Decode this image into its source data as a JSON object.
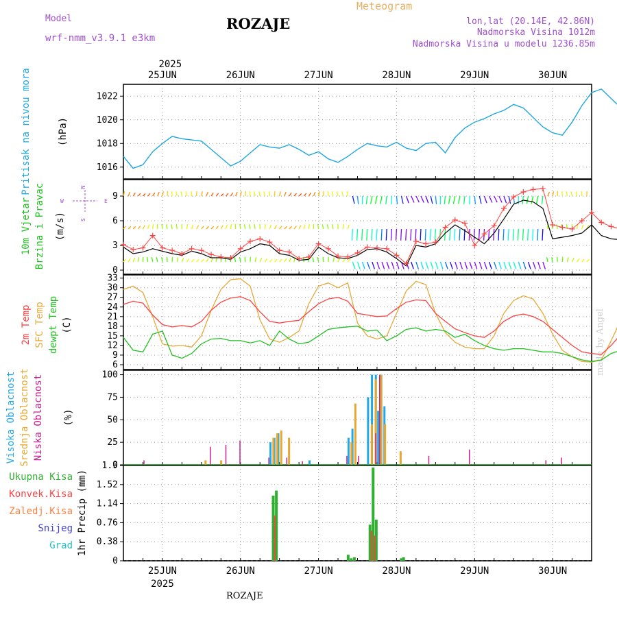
{
  "header": {
    "title": "ROZAJE",
    "model_label": "Model",
    "model_name": "wrf-nmm_v3.9.1 e3km",
    "meteogram": "Meteogram",
    "coords": "lon,lat (20.14E, 42.86N)",
    "elevation": "Nadmorska Visina 1012m",
    "elevation_model": "Nadmorska Visina u modelu 1236.85m"
  },
  "footer": {
    "location": "ROZAJE",
    "credit": "made by Angel"
  },
  "colors": {
    "pressure": "#1ea6e0",
    "temp2m": "#ff4040",
    "sfc": "#e8a838",
    "dew": "#20c020",
    "high": "#20a8e8",
    "mid": "#e8a830",
    "low": "#c81e8c",
    "total": "#30b030",
    "conv": "#ff4040",
    "frozen": "#ff8040",
    "snow": "#4040e0",
    "grad": "#20c0c0",
    "wind": "#000000",
    "gust": "#ff4040"
  },
  "chart_data": [
    {
      "type": "line",
      "panel": "pressure",
      "ylabel": [
        "Pritisak na nivou mora",
        "(hPa)"
      ],
      "yticks": [
        1016,
        1018,
        1020,
        1022
      ],
      "ylim": [
        1015,
        1023
      ],
      "x_start_day": 24.5,
      "step_hours": 3,
      "series": [
        {
          "name": "Pritisak",
          "values": [
            1016.9,
            1015.9,
            1016.2,
            1017.3,
            1018.0,
            1018.6,
            1018.4,
            1018.3,
            1018.2,
            1017.5,
            1016.8,
            1016.1,
            1016.5,
            1017.2,
            1017.9,
            1017.7,
            1017.6,
            1017.9,
            1017.5,
            1017.0,
            1017.3,
            1016.7,
            1016.4,
            1016.9,
            1017.5,
            1018.0,
            1017.8,
            1017.7,
            1018.1,
            1017.6,
            1017.4,
            1018.0,
            1018.1,
            1017.2,
            1018.5,
            1019.3,
            1019.8,
            1020.1,
            1020.5,
            1020.8,
            1021.3,
            1021.0,
            1020.2,
            1019.4,
            1018.9,
            1018.7,
            1019.8,
            1021.2,
            1022.3,
            1022.6,
            1021.8,
            1021.0,
            1020.8,
            1020.9,
            1020.1,
            1019.6,
            1019.3,
            1020.0,
            1021.2,
            1022.1,
            1021.8,
            1021.0,
            1020.6,
            1019.7,
            1018.5,
            1017.8
          ]
        }
      ]
    },
    {
      "type": "line",
      "panel": "wind",
      "ylabel": [
        "10m Vjetar",
        "Brzina i Pravac",
        "(m/s)"
      ],
      "compass": [
        "N",
        "W",
        "E",
        "S"
      ],
      "yticks": [
        0,
        3,
        6,
        9
      ],
      "ylim": [
        -0.5,
        11
      ],
      "x_start_day": 24.5,
      "step_hours": 3,
      "series": [
        {
          "name": "Brzina",
          "values": [
            2.8,
            2.0,
            2.2,
            2.6,
            2.3,
            2.0,
            1.8,
            2.3,
            2.0,
            1.5,
            1.5,
            1.3,
            2.2,
            2.6,
            3.2,
            3.0,
            2.0,
            1.8,
            1.2,
            1.3,
            2.8,
            2.0,
            1.5,
            1.4,
            1.8,
            2.5,
            2.6,
            2.2,
            1.4,
            0.5,
            3.0,
            2.8,
            3.2,
            4.5,
            5.5,
            4.8,
            4.0,
            3.2,
            4.5,
            6.2,
            8.0,
            8.5,
            8.3,
            7.5,
            3.8,
            4.0,
            4.2,
            4.5,
            5.5,
            4.2,
            3.8,
            3.7,
            4.0,
            4.2,
            6.8,
            7.5,
            7.8,
            7.7,
            6.8,
            4.5,
            3.0,
            2.5,
            3.0,
            3.5,
            5.5,
            5.5
          ]
        },
        {
          "name": "Udari",
          "values": [
            3.1,
            2.5,
            2.7,
            4.2,
            2.7,
            2.4,
            2.0,
            2.6,
            2.4,
            1.9,
            1.6,
            1.5,
            2.6,
            3.5,
            3.8,
            3.4,
            2.4,
            2.2,
            1.4,
            1.6,
            3.2,
            2.6,
            1.7,
            1.6,
            2.1,
            2.8,
            2.7,
            2.6,
            1.8,
            0.8,
            3.5,
            3.2,
            3.4,
            5.2,
            6.1,
            5.7,
            3.0,
            4.4,
            5.4,
            7.5,
            8.9,
            9.5,
            9.8,
            9.9,
            5.5,
            5.2,
            5.0,
            6.0,
            7.0,
            5.8,
            5.3,
            5.0,
            5.5,
            5.6,
            8.2,
            9.6,
            10.0,
            9.5,
            8.8,
            6.2,
            4.6,
            3.8,
            4.0,
            4.3,
            6.5,
            5.2
          ]
        }
      ],
      "arrow_rows": [
        9,
        5,
        1
      ]
    },
    {
      "type": "line",
      "panel": "temperature",
      "ylabel": [
        "2m Temp",
        "SFC Temp",
        "dewpt Temp",
        "(C)"
      ],
      "yticks": [
        6,
        9,
        12,
        15,
        18,
        21,
        24,
        27,
        30,
        33
      ],
      "ylim": [
        4.5,
        34
      ],
      "x_start_day": 24.5,
      "step_hours": 3,
      "series": [
        {
          "name": "2m Temp",
          "values": [
            24.8,
            25.8,
            25.2,
            21.5,
            18.5,
            17.8,
            18.2,
            17.8,
            19.5,
            23.0,
            25.5,
            26.8,
            27.2,
            26.0,
            22.5,
            19.5,
            19.0,
            19.5,
            19.8,
            22.5,
            25.0,
            26.5,
            27.0,
            25.8,
            22.0,
            21.5,
            21.0,
            21.2,
            23.5,
            25.5,
            26.2,
            26.0,
            22.0,
            19.5,
            17.2,
            16.0,
            15.0,
            14.5,
            16.5,
            19.5,
            21.2,
            21.8,
            21.0,
            19.5,
            17.0,
            14.5,
            12.0,
            10.0,
            9.5,
            9.2,
            12.0,
            15.5,
            18.5,
            20.3,
            20.0,
            18.5,
            15.0,
            12.5,
            12.0,
            11.8,
            12.5,
            15.0,
            18.5,
            20.8,
            21.8,
            22.5
          ]
        },
        {
          "name": "SFC Temp",
          "values": [
            29.5,
            30.5,
            28.5,
            21.0,
            12.5,
            11.8,
            12.0,
            11.5,
            15.0,
            23.0,
            29.5,
            32.5,
            32.8,
            30.5,
            20.0,
            14.0,
            13.0,
            14.5,
            16.5,
            25.0,
            30.5,
            31.5,
            30.0,
            31.5,
            19.0,
            15.0,
            14.0,
            15.0,
            22.0,
            29.0,
            32.0,
            31.0,
            22.0,
            16.0,
            13.0,
            11.5,
            11.0,
            11.0,
            15.0,
            22.0,
            26.0,
            27.5,
            26.5,
            22.0,
            15.5,
            10.5,
            8.5,
            7.0,
            6.8,
            7.5,
            13.5,
            20.0,
            25.0,
            27.0,
            26.0,
            22.0,
            14.0,
            9.0,
            8.0,
            7.5,
            8.5,
            17.0,
            24.0,
            27.5,
            29.0,
            29.0
          ]
        },
        {
          "name": "dewpt Temp",
          "values": [
            14.5,
            10.5,
            10.0,
            15.5,
            16.5,
            9.0,
            8.0,
            9.5,
            12.5,
            14.0,
            14.2,
            13.5,
            13.5,
            12.8,
            13.5,
            12.0,
            16.5,
            14.0,
            12.5,
            13.0,
            15.0,
            17.0,
            17.5,
            17.8,
            18.0,
            16.5,
            16.8,
            13.5,
            15.0,
            17.0,
            17.5,
            16.5,
            17.0,
            16.5,
            14.5,
            15.5,
            13.5,
            12.0,
            11.0,
            10.5,
            11.0,
            11.0,
            10.5,
            10.0,
            10.0,
            9.5,
            8.5,
            7.5,
            7.0,
            7.5,
            9.5,
            10.5,
            10.5,
            11.0,
            10.8,
            11.0,
            11.5,
            11.0,
            11.5,
            11.5,
            12.5,
            11.5,
            12.0,
            12.0,
            12.2,
            12.0
          ]
        }
      ]
    },
    {
      "type": "bar",
      "panel": "clouds",
      "ylabel": [
        "Visoka Oblacnost",
        "Srednja Oblacnost",
        "Niska Oblacnost",
        "(%)"
      ],
      "yticks": [
        0,
        25,
        50,
        75,
        100
      ],
      "ylim": [
        0,
        105
      ],
      "series": [
        {
          "name": "Visoka",
          "points": [
            [
              26.4,
              25
            ],
            [
              26.45,
              30
            ],
            [
              26.5,
              35
            ],
            [
              27.4,
              30
            ],
            [
              27.45,
              40
            ],
            [
              27.65,
              75
            ],
            [
              27.7,
              100
            ],
            [
              27.75,
              100
            ],
            [
              27.78,
              60
            ],
            [
              27.82,
              100
            ],
            [
              27.86,
              65
            ],
            [
              26.9,
              5
            ]
          ]
        },
        {
          "name": "Srednja",
          "points": [
            [
              26.42,
              30
            ],
            [
              26.47,
              35
            ],
            [
              26.52,
              38
            ],
            [
              26.62,
              30
            ],
            [
              27.42,
              25
            ],
            [
              27.47,
              68
            ],
            [
              27.68,
              45
            ],
            [
              27.73,
              95
            ],
            [
              27.8,
              100
            ],
            [
              27.85,
              45
            ],
            [
              28.05,
              15
            ],
            [
              25.55,
              5
            ],
            [
              25.75,
              5
            ]
          ]
        },
        {
          "name": "Niska",
          "points": [
            [
              24.75,
              5
            ],
            [
              25.6,
              20
            ],
            [
              25.8,
              22
            ],
            [
              25.98,
              27
            ],
            [
              26.35,
              8
            ],
            [
              26.58,
              8
            ],
            [
              26.78,
              4
            ],
            [
              27.35,
              10
            ],
            [
              27.5,
              10
            ],
            [
              27.72,
              35
            ],
            [
              27.77,
              100
            ],
            [
              28.4,
              10
            ],
            [
              28.92,
              17
            ],
            [
              29.9,
              5
            ],
            [
              30.1,
              8
            ]
          ]
        }
      ]
    },
    {
      "type": "bar",
      "panel": "precipitation",
      "ylabel": [
        "1hr Precip (mm)"
      ],
      "legend": [
        "Ukupna Kisa",
        "Konvek.Kisa",
        "Zaledj.Kisa",
        "Snijeg",
        "Grad"
      ],
      "yticks": [
        0,
        0.38,
        0.76,
        1.14,
        1.52,
        1.9
      ],
      "ylim": [
        0,
        1.9
      ],
      "series": [
        {
          "name": "Ukupna Kisa",
          "points": [
            [
              26.42,
              1.3
            ],
            [
              26.46,
              1.4
            ],
            [
              27.38,
              0.12
            ],
            [
              27.42,
              0.05
            ],
            [
              27.46,
              0.07
            ],
            [
              27.66,
              0.72
            ],
            [
              27.7,
              1.86
            ],
            [
              27.74,
              0.82
            ],
            [
              28.06,
              0.05
            ],
            [
              28.09,
              0.07
            ]
          ]
        },
        {
          "name": "Konvek.Kisa",
          "points": [
            [
              26.44,
              0.9
            ],
            [
              27.68,
              0.6
            ],
            [
              27.72,
              0.5
            ]
          ]
        }
      ]
    }
  ],
  "x_axis": {
    "year": "2025",
    "days": [
      "25JUN",
      "26JUN",
      "27JUN",
      "28JUN",
      "29JUN",
      "30JUN"
    ],
    "range": [
      24.5,
      30.5
    ]
  }
}
